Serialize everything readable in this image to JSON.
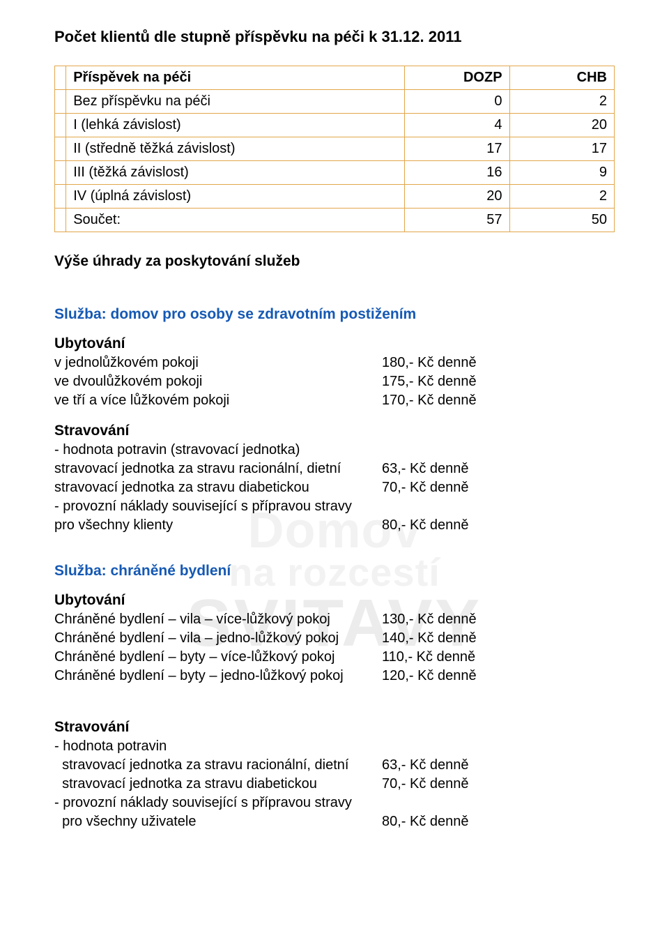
{
  "title": "Počet klientů dle stupně příspěvku na péči k 31.12. 2011",
  "table": {
    "header": {
      "c0": "Příspěvek na péči",
      "c1": "DOZP",
      "c2": "CHB"
    },
    "rows": [
      {
        "c0": "Bez příspěvku na péči",
        "c1": "0",
        "c2": "2"
      },
      {
        "c0": "I (lehká závislost)",
        "c1": "4",
        "c2": "20"
      },
      {
        "c0": "II (středně těžká závislost)",
        "c1": "17",
        "c2": "17"
      },
      {
        "c0": "III (těžká závislost)",
        "c1": "16",
        "c2": "9"
      },
      {
        "c0": "IV (úplná závislost)",
        "c1": "20",
        "c2": "2"
      },
      {
        "c0": "Součet:",
        "c1": "57",
        "c2": "50"
      }
    ]
  },
  "fees_heading": "Výše úhrady za poskytování služeb",
  "service1": {
    "heading": "Služba: domov pro osoby se zdravotním postižením",
    "ubytovani_label": "Ubytování",
    "rows": [
      {
        "k": "v jednolůžkovém pokoji",
        "v": "180,- Kč denně"
      },
      {
        "k": "ve dvoulůžkovém pokoji",
        "v": "175,- Kč denně"
      },
      {
        "k": "ve tří a více lůžkovém  pokoji",
        "v": "170,- Kč denně"
      }
    ],
    "stravovani_label": "Stravování",
    "s_lines": {
      "l1": "- hodnota potravin (stravovací jednotka)",
      "r1": {
        "k": "stravovací jednotka za stravu racionální, dietní",
        "v": "63,- Kč denně"
      },
      "r2": {
        "k": "stravovací jednotka za stravu diabetickou",
        "v": "70,- Kč denně"
      },
      "l2": "- provozní náklady související s přípravou stravy",
      "r3": {
        "k": "pro všechny klienty",
        "v": "80,- Kč denně"
      }
    }
  },
  "service2": {
    "heading": "Služba: chráněné bydlení",
    "ubytovani_label": "Ubytování",
    "rows": [
      {
        "k": "Chráněné bydlení – vila – více-lůžkový pokoj",
        "v": "130,- Kč denně"
      },
      {
        "k": "Chráněné bydlení – vila – jedno-lůžkový pokoj",
        "v": "140,- Kč denně"
      },
      {
        "k": "Chráněné bydlení – byty – více-lůžkový pokoj",
        "v": "110,- Kč denně"
      },
      {
        "k": "Chráněné bydlení – byty – jedno-lůžkový pokoj",
        "v": "120,- Kč denně"
      }
    ],
    "stravovani_label": "Stravování",
    "s_lines": {
      "l1": "- hodnota potravin",
      "r1": {
        "k": "  stravovací jednotka za stravu racionální, dietní",
        "v": "63,- Kč denně"
      },
      "r2": {
        "k": "  stravovací jednotka za stravu diabetickou",
        "v": "70,- Kč denně"
      },
      "l2": "- provozní náklady související s přípravou stravy",
      "r3": {
        "k": "  pro všechny uživatele",
        "v": "80,- Kč denně"
      }
    }
  },
  "watermark": {
    "l1": "Domov",
    "l2": "na rozcestí",
    "l3": "SVITAVY"
  },
  "colors": {
    "table_border": "#e2a64a",
    "heading_blue": "#1559b4",
    "text": "#000000",
    "bg": "#ffffff",
    "watermark": "#f0f0f0"
  }
}
